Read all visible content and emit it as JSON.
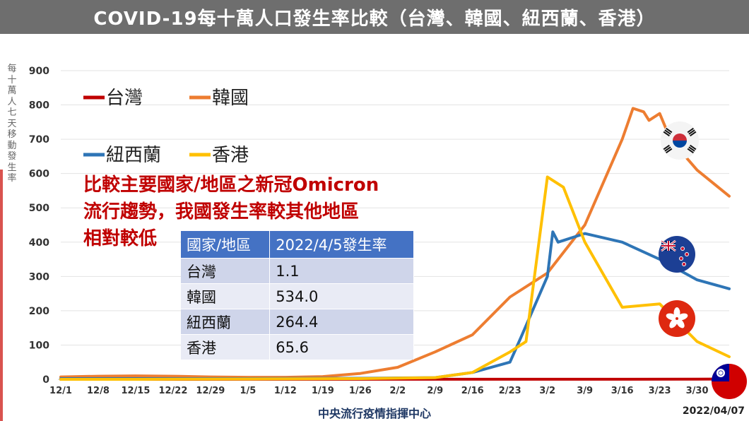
{
  "title": "COVID-19每十萬人口發生率比較（台灣、韓國、紐西蘭、香港）",
  "ylabel": "每十萬人七天移動發生率",
  "annotation": [
    "比較主要國家/地區之新冠Omicron",
    "流行趨勢，我國發生率較其他地區",
    "相對較低"
  ],
  "table": {
    "headers": [
      "國家/地區",
      "2022/4/5發生率"
    ],
    "rows": [
      {
        "region": "台灣",
        "rate": "1.1"
      },
      {
        "region": "韓國",
        "rate": "534.0"
      },
      {
        "region": "紐西蘭",
        "rate": "264.4"
      },
      {
        "region": "香港",
        "rate": "65.6"
      }
    ]
  },
  "source": "中央流行疫情指揮中心",
  "date": "2022/04/07",
  "flags": [
    {
      "name": "korea-flag-icon",
      "series": "韓國"
    },
    {
      "name": "new-zealand-flag-icon",
      "series": "紐西蘭"
    },
    {
      "name": "hong-kong-flag-icon",
      "series": "香港"
    },
    {
      "name": "taiwan-flag-icon",
      "series": "台灣"
    }
  ],
  "chart_data": {
    "type": "line",
    "title": "COVID-19每十萬人口發生率比較（台灣、韓國、紐西蘭、香港）",
    "ylabel": "每十萬人七天移動發生率",
    "xlabel": "",
    "x_ticks": [
      "12/1",
      "12/8",
      "12/15",
      "12/22",
      "12/29",
      "1/5",
      "1/12",
      "1/19",
      "1/26",
      "2/2",
      "2/9",
      "2/16",
      "2/23",
      "3/2",
      "3/9",
      "3/16",
      "3/23",
      "3/30"
    ],
    "y_ticks": [
      0,
      100,
      200,
      300,
      400,
      500,
      600,
      700,
      800,
      900
    ],
    "ylim": [
      0,
      900
    ],
    "grid": true,
    "legend": "top-left",
    "series": [
      {
        "name": "台灣",
        "color": "#c00000",
        "points": [
          [
            "12/1",
            0.1
          ],
          [
            "12/15",
            0.1
          ],
          [
            "1/5",
            0.2
          ],
          [
            "1/26",
            0.3
          ],
          [
            "2/16",
            0.3
          ],
          [
            "3/9",
            0.3
          ],
          [
            "3/30",
            0.6
          ],
          [
            "4/5",
            1.1
          ]
        ]
      },
      {
        "name": "韓國",
        "color": "#ed7d31",
        "points": [
          [
            "12/1",
            7
          ],
          [
            "12/8",
            9
          ],
          [
            "12/15",
            10
          ],
          [
            "12/22",
            9
          ],
          [
            "12/29",
            7
          ],
          [
            "1/5",
            6
          ],
          [
            "1/12",
            6
          ],
          [
            "1/19",
            8
          ],
          [
            "1/26",
            17
          ],
          [
            "2/2",
            35
          ],
          [
            "2/9",
            80
          ],
          [
            "2/16",
            130
          ],
          [
            "2/23",
            240
          ],
          [
            "3/2",
            310
          ],
          [
            "3/9",
            450
          ],
          [
            "3/16",
            700
          ],
          [
            "3/18",
            790
          ],
          [
            "3/20",
            780
          ],
          [
            "3/21",
            755
          ],
          [
            "3/23",
            775
          ],
          [
            "3/25",
            700
          ],
          [
            "3/30",
            610
          ],
          [
            "4/5",
            534
          ]
        ]
      },
      {
        "name": "紐西蘭",
        "color": "#2e75b6",
        "points": [
          [
            "12/1",
            2
          ],
          [
            "12/15",
            2
          ],
          [
            "1/5",
            2
          ],
          [
            "1/26",
            3
          ],
          [
            "2/9",
            5
          ],
          [
            "2/16",
            20
          ],
          [
            "2/23",
            50
          ],
          [
            "2/25",
            120
          ],
          [
            "3/2",
            300
          ],
          [
            "3/3",
            430
          ],
          [
            "3/4",
            400
          ],
          [
            "3/9",
            425
          ],
          [
            "3/16",
            400
          ],
          [
            "3/23",
            350
          ],
          [
            "3/30",
            290
          ],
          [
            "4/5",
            264
          ]
        ]
      },
      {
        "name": "香港",
        "color": "#ffc000",
        "points": [
          [
            "12/1",
            0
          ],
          [
            "12/15",
            0
          ],
          [
            "1/5",
            1
          ],
          [
            "1/26",
            2
          ],
          [
            "2/9",
            5
          ],
          [
            "2/16",
            20
          ],
          [
            "2/23",
            80
          ],
          [
            "2/26",
            110
          ],
          [
            "3/2",
            590
          ],
          [
            "3/5",
            560
          ],
          [
            "3/9",
            400
          ],
          [
            "3/16",
            210
          ],
          [
            "3/23",
            220
          ],
          [
            "3/30",
            110
          ],
          [
            "4/5",
            66
          ]
        ]
      }
    ]
  }
}
